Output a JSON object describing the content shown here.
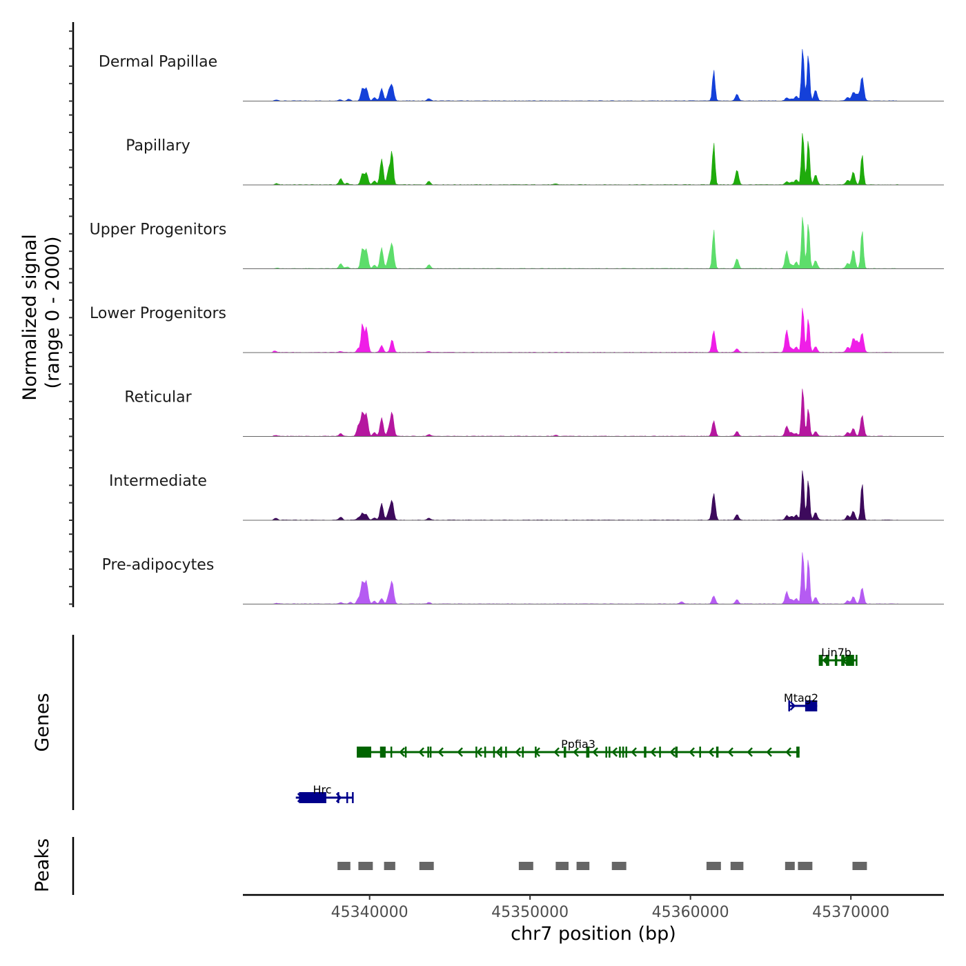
{
  "chart_data": {
    "type": "area",
    "title": "",
    "xlabel": "chr7 position (bp)",
    "ylabel": "Normalized signal\n(range 0 - 2000)",
    "ylabel_lines": [
      "Normalized signal",
      "(range 0 - 2000)"
    ],
    "ylim": [
      0,
      2000
    ],
    "xlim": [
      45332100,
      45375800
    ],
    "x_ticks": [
      45340000,
      45350000,
      45360000,
      45370000
    ],
    "x_tick_labels": [
      "45340000",
      "45350000",
      "45360000",
      "45370000"
    ],
    "grid": false,
    "panels": {
      "genes_label": "Genes",
      "peaks_label": "Peaks"
    },
    "tracks": [
      {
        "name": "Dermal Papillae",
        "color": "#1440d9",
        "peaks": [
          [
            45334200,
            40
          ],
          [
            45338150,
            50
          ],
          [
            45338700,
            70
          ],
          [
            45339550,
            460
          ],
          [
            45339800,
            460
          ],
          [
            45340300,
            120
          ],
          [
            45340750,
            460
          ],
          [
            45341200,
            350
          ],
          [
            45341400,
            560
          ],
          [
            45343700,
            90
          ],
          [
            45361450,
            1150
          ],
          [
            45362900,
            250
          ],
          [
            45366000,
            110
          ],
          [
            45366300,
            80
          ],
          [
            45366600,
            180
          ],
          [
            45367000,
            2000
          ],
          [
            45367350,
            1750
          ],
          [
            45367800,
            400
          ],
          [
            45369800,
            140
          ],
          [
            45370150,
            320
          ],
          [
            45370400,
            230
          ],
          [
            45370700,
            900
          ]
        ]
      },
      {
        "name": "Papillary",
        "color": "#1fab0c",
        "peaks": [
          [
            45334200,
            40
          ],
          [
            45338200,
            230
          ],
          [
            45338600,
            60
          ],
          [
            45339550,
            400
          ],
          [
            45339800,
            430
          ],
          [
            45340300,
            140
          ],
          [
            45340750,
            950
          ],
          [
            45341200,
            600
          ],
          [
            45341400,
            1190
          ],
          [
            45343700,
            130
          ],
          [
            45351600,
            30
          ],
          [
            45361450,
            1560
          ],
          [
            45362900,
            550
          ],
          [
            45366000,
            120
          ],
          [
            45366300,
            100
          ],
          [
            45366600,
            190
          ],
          [
            45367000,
            2000
          ],
          [
            45367350,
            1700
          ],
          [
            45367800,
            370
          ],
          [
            45369800,
            170
          ],
          [
            45370150,
            470
          ],
          [
            45370700,
            1150
          ]
        ]
      },
      {
        "name": "Upper Progenitors",
        "color": "#5ddd6b",
        "peaks": [
          [
            45334200,
            20
          ],
          [
            45338200,
            180
          ],
          [
            45338600,
            60
          ],
          [
            45339550,
            720
          ],
          [
            45339800,
            680
          ],
          [
            45340300,
            130
          ],
          [
            45340750,
            760
          ],
          [
            45341200,
            400
          ],
          [
            45341400,
            880
          ],
          [
            45343700,
            150
          ],
          [
            45361450,
            1450
          ],
          [
            45362900,
            370
          ],
          [
            45366000,
            650
          ],
          [
            45366300,
            140
          ],
          [
            45366600,
            250
          ],
          [
            45367000,
            2000
          ],
          [
            45367350,
            1720
          ],
          [
            45367800,
            300
          ],
          [
            45369800,
            200
          ],
          [
            45370150,
            700
          ],
          [
            45370700,
            1460
          ]
        ]
      },
      {
        "name": "Lower Progenitors",
        "color": "#ef1ee7",
        "peaks": [
          [
            45334100,
            60
          ],
          [
            45338200,
            40
          ],
          [
            45339300,
            150
          ],
          [
            45339550,
            1050
          ],
          [
            45339800,
            930
          ],
          [
            45340750,
            260
          ],
          [
            45341400,
            470
          ],
          [
            45343700,
            30
          ],
          [
            45361450,
            800
          ],
          [
            45362900,
            140
          ],
          [
            45366000,
            830
          ],
          [
            45366300,
            150
          ],
          [
            45366600,
            200
          ],
          [
            45367000,
            1720
          ],
          [
            45367350,
            1290
          ],
          [
            45367800,
            220
          ],
          [
            45369800,
            200
          ],
          [
            45370150,
            520
          ],
          [
            45370400,
            400
          ],
          [
            45370700,
            720
          ]
        ]
      },
      {
        "name": "Reticular",
        "color": "#b5179f",
        "peaks": [
          [
            45334150,
            30
          ],
          [
            45338200,
            100
          ],
          [
            45339300,
            400
          ],
          [
            45339550,
            850
          ],
          [
            45339800,
            800
          ],
          [
            45340300,
            150
          ],
          [
            45340750,
            680
          ],
          [
            45341200,
            250
          ],
          [
            45341400,
            870
          ],
          [
            45343700,
            70
          ],
          [
            45351600,
            40
          ],
          [
            45361450,
            570
          ],
          [
            45362900,
            180
          ],
          [
            45366000,
            380
          ],
          [
            45366300,
            140
          ],
          [
            45366600,
            100
          ],
          [
            45367000,
            1850
          ],
          [
            45367350,
            1050
          ],
          [
            45367800,
            170
          ],
          [
            45369800,
            140
          ],
          [
            45370150,
            300
          ],
          [
            45370700,
            780
          ]
        ]
      },
      {
        "name": "Intermediate",
        "color": "#3d0a5c",
        "peaks": [
          [
            45334150,
            70
          ],
          [
            45338200,
            110
          ],
          [
            45339300,
            90
          ],
          [
            45339550,
            250
          ],
          [
            45339800,
            200
          ],
          [
            45340300,
            90
          ],
          [
            45340750,
            610
          ],
          [
            45341200,
            300
          ],
          [
            45341400,
            690
          ],
          [
            45343700,
            80
          ],
          [
            45361450,
            990
          ],
          [
            45362900,
            210
          ],
          [
            45366000,
            170
          ],
          [
            45366300,
            140
          ],
          [
            45366600,
            190
          ],
          [
            45367000,
            1930
          ],
          [
            45367350,
            1530
          ],
          [
            45367800,
            280
          ],
          [
            45369800,
            170
          ],
          [
            45370150,
            330
          ],
          [
            45370700,
            1400
          ]
        ]
      },
      {
        "name": "Pre-adipocytes",
        "color": "#b55bf2",
        "peaks": [
          [
            45334200,
            30
          ],
          [
            45338200,
            60
          ],
          [
            45338800,
            60
          ],
          [
            45339300,
            200
          ],
          [
            45339550,
            800
          ],
          [
            45339800,
            810
          ],
          [
            45340300,
            100
          ],
          [
            45340750,
            200
          ],
          [
            45341200,
            300
          ],
          [
            45341400,
            800
          ],
          [
            45343700,
            60
          ],
          [
            45359450,
            80
          ],
          [
            45361450,
            300
          ],
          [
            45362900,
            160
          ],
          [
            45366000,
            450
          ],
          [
            45366300,
            170
          ],
          [
            45366600,
            200
          ],
          [
            45367000,
            2000
          ],
          [
            45367350,
            1700
          ],
          [
            45367800,
            250
          ],
          [
            45369800,
            120
          ],
          [
            45370150,
            270
          ],
          [
            45370700,
            600
          ]
        ]
      }
    ],
    "genes": [
      {
        "name": "Lin7b",
        "strand": "-",
        "start": 45368000,
        "end": 45370400,
        "color": "#006400",
        "row": 0,
        "exons": [
          [
            45368000,
            45368250
          ],
          [
            45368450,
            45368650
          ],
          [
            45369000,
            45369150
          ],
          [
            45369400,
            45369600
          ],
          [
            45369700,
            45370200
          ],
          [
            45370300,
            45370400
          ]
        ]
      },
      {
        "name": "Mtag2",
        "strand": "+",
        "start": 45366100,
        "end": 45367900,
        "color": "#00008b",
        "row": 1,
        "exons": [
          [
            45366100,
            45366200
          ],
          [
            45367150,
            45367900
          ]
        ]
      },
      {
        "name": "Ppfia3",
        "strand": "-",
        "start": 45339200,
        "end": 45366800,
        "color": "#006400",
        "row": 2,
        "exons": [
          [
            45339200,
            45340100
          ],
          [
            45340650,
            45341000
          ],
          [
            45341300,
            45341400
          ],
          [
            45342200,
            45342300
          ],
          [
            45343600,
            45343650
          ],
          [
            45343750,
            45343800
          ],
          [
            45346600,
            45346700
          ],
          [
            45347150,
            45347250
          ],
          [
            45347700,
            45347800
          ],
          [
            45348150,
            45348250
          ],
          [
            45348450,
            45348550
          ],
          [
            45349500,
            45349600
          ],
          [
            45350300,
            45350400
          ],
          [
            45352100,
            45352250
          ],
          [
            45353500,
            45353700
          ],
          [
            45354700,
            45354750
          ],
          [
            45354900,
            45354950
          ],
          [
            45355550,
            45355650
          ],
          [
            45355750,
            45355800
          ],
          [
            45355950,
            45356000
          ],
          [
            45357100,
            45357250
          ],
          [
            45358050,
            45358100
          ],
          [
            45359050,
            45359200
          ],
          [
            45360550,
            45360650
          ],
          [
            45361600,
            45361750
          ],
          [
            45366600,
            45366800
          ]
        ]
      },
      {
        "name": "Hrc",
        "strand": "+",
        "start": 45335400,
        "end": 45339000,
        "color": "#00008b",
        "row": 3,
        "exons": [
          [
            45335600,
            45337300
          ],
          [
            45338000,
            45338050
          ],
          [
            45338550,
            45338600
          ],
          [
            45338900,
            45339000
          ]
        ]
      }
    ],
    "peaks": [
      [
        45338000,
        45338800
      ],
      [
        45339300,
        45340200
      ],
      [
        45340900,
        45341600
      ],
      [
        45343100,
        45344000
      ],
      [
        45349300,
        45350200
      ],
      [
        45351600,
        45352400
      ],
      [
        45352900,
        45353700
      ],
      [
        45355100,
        45356000
      ],
      [
        45361000,
        45361900
      ],
      [
        45362500,
        45363300
      ],
      [
        45365900,
        45366500
      ],
      [
        45366700,
        45367600
      ],
      [
        45370100,
        45371000
      ]
    ]
  }
}
